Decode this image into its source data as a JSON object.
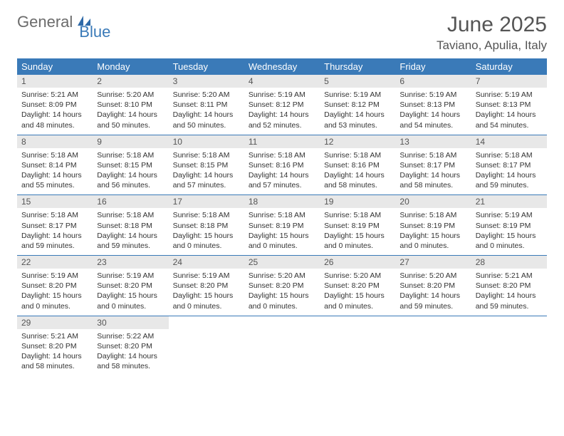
{
  "logo": {
    "text_gray": "General",
    "text_blue": "Blue",
    "icon_color": "#2f6aa8"
  },
  "header": {
    "month_title": "June 2025",
    "location": "Taviano, Apulia, Italy"
  },
  "colors": {
    "header_bg": "#3a7ab8",
    "header_text": "#ffffff",
    "daynum_bg": "#e8e8e8",
    "border": "#3a7ab8"
  },
  "day_labels": [
    "Sunday",
    "Monday",
    "Tuesday",
    "Wednesday",
    "Thursday",
    "Friday",
    "Saturday"
  ],
  "weeks": [
    [
      {
        "n": "1",
        "sr": "Sunrise: 5:21 AM",
        "ss": "Sunset: 8:09 PM",
        "dl": "Daylight: 14 hours and 48 minutes."
      },
      {
        "n": "2",
        "sr": "Sunrise: 5:20 AM",
        "ss": "Sunset: 8:10 PM",
        "dl": "Daylight: 14 hours and 50 minutes."
      },
      {
        "n": "3",
        "sr": "Sunrise: 5:20 AM",
        "ss": "Sunset: 8:11 PM",
        "dl": "Daylight: 14 hours and 50 minutes."
      },
      {
        "n": "4",
        "sr": "Sunrise: 5:19 AM",
        "ss": "Sunset: 8:12 PM",
        "dl": "Daylight: 14 hours and 52 minutes."
      },
      {
        "n": "5",
        "sr": "Sunrise: 5:19 AM",
        "ss": "Sunset: 8:12 PM",
        "dl": "Daylight: 14 hours and 53 minutes."
      },
      {
        "n": "6",
        "sr": "Sunrise: 5:19 AM",
        "ss": "Sunset: 8:13 PM",
        "dl": "Daylight: 14 hours and 54 minutes."
      },
      {
        "n": "7",
        "sr": "Sunrise: 5:19 AM",
        "ss": "Sunset: 8:13 PM",
        "dl": "Daylight: 14 hours and 54 minutes."
      }
    ],
    [
      {
        "n": "8",
        "sr": "Sunrise: 5:18 AM",
        "ss": "Sunset: 8:14 PM",
        "dl": "Daylight: 14 hours and 55 minutes."
      },
      {
        "n": "9",
        "sr": "Sunrise: 5:18 AM",
        "ss": "Sunset: 8:15 PM",
        "dl": "Daylight: 14 hours and 56 minutes."
      },
      {
        "n": "10",
        "sr": "Sunrise: 5:18 AM",
        "ss": "Sunset: 8:15 PM",
        "dl": "Daylight: 14 hours and 57 minutes."
      },
      {
        "n": "11",
        "sr": "Sunrise: 5:18 AM",
        "ss": "Sunset: 8:16 PM",
        "dl": "Daylight: 14 hours and 57 minutes."
      },
      {
        "n": "12",
        "sr": "Sunrise: 5:18 AM",
        "ss": "Sunset: 8:16 PM",
        "dl": "Daylight: 14 hours and 58 minutes."
      },
      {
        "n": "13",
        "sr": "Sunrise: 5:18 AM",
        "ss": "Sunset: 8:17 PM",
        "dl": "Daylight: 14 hours and 58 minutes."
      },
      {
        "n": "14",
        "sr": "Sunrise: 5:18 AM",
        "ss": "Sunset: 8:17 PM",
        "dl": "Daylight: 14 hours and 59 minutes."
      }
    ],
    [
      {
        "n": "15",
        "sr": "Sunrise: 5:18 AM",
        "ss": "Sunset: 8:17 PM",
        "dl": "Daylight: 14 hours and 59 minutes."
      },
      {
        "n": "16",
        "sr": "Sunrise: 5:18 AM",
        "ss": "Sunset: 8:18 PM",
        "dl": "Daylight: 14 hours and 59 minutes."
      },
      {
        "n": "17",
        "sr": "Sunrise: 5:18 AM",
        "ss": "Sunset: 8:18 PM",
        "dl": "Daylight: 15 hours and 0 minutes."
      },
      {
        "n": "18",
        "sr": "Sunrise: 5:18 AM",
        "ss": "Sunset: 8:19 PM",
        "dl": "Daylight: 15 hours and 0 minutes."
      },
      {
        "n": "19",
        "sr": "Sunrise: 5:18 AM",
        "ss": "Sunset: 8:19 PM",
        "dl": "Daylight: 15 hours and 0 minutes."
      },
      {
        "n": "20",
        "sr": "Sunrise: 5:18 AM",
        "ss": "Sunset: 8:19 PM",
        "dl": "Daylight: 15 hours and 0 minutes."
      },
      {
        "n": "21",
        "sr": "Sunrise: 5:19 AM",
        "ss": "Sunset: 8:19 PM",
        "dl": "Daylight: 15 hours and 0 minutes."
      }
    ],
    [
      {
        "n": "22",
        "sr": "Sunrise: 5:19 AM",
        "ss": "Sunset: 8:20 PM",
        "dl": "Daylight: 15 hours and 0 minutes."
      },
      {
        "n": "23",
        "sr": "Sunrise: 5:19 AM",
        "ss": "Sunset: 8:20 PM",
        "dl": "Daylight: 15 hours and 0 minutes."
      },
      {
        "n": "24",
        "sr": "Sunrise: 5:19 AM",
        "ss": "Sunset: 8:20 PM",
        "dl": "Daylight: 15 hours and 0 minutes."
      },
      {
        "n": "25",
        "sr": "Sunrise: 5:20 AM",
        "ss": "Sunset: 8:20 PM",
        "dl": "Daylight: 15 hours and 0 minutes."
      },
      {
        "n": "26",
        "sr": "Sunrise: 5:20 AM",
        "ss": "Sunset: 8:20 PM",
        "dl": "Daylight: 15 hours and 0 minutes."
      },
      {
        "n": "27",
        "sr": "Sunrise: 5:20 AM",
        "ss": "Sunset: 8:20 PM",
        "dl": "Daylight: 14 hours and 59 minutes."
      },
      {
        "n": "28",
        "sr": "Sunrise: 5:21 AM",
        "ss": "Sunset: 8:20 PM",
        "dl": "Daylight: 14 hours and 59 minutes."
      }
    ],
    [
      {
        "n": "29",
        "sr": "Sunrise: 5:21 AM",
        "ss": "Sunset: 8:20 PM",
        "dl": "Daylight: 14 hours and 58 minutes."
      },
      {
        "n": "30",
        "sr": "Sunrise: 5:22 AM",
        "ss": "Sunset: 8:20 PM",
        "dl": "Daylight: 14 hours and 58 minutes."
      },
      null,
      null,
      null,
      null,
      null
    ]
  ]
}
